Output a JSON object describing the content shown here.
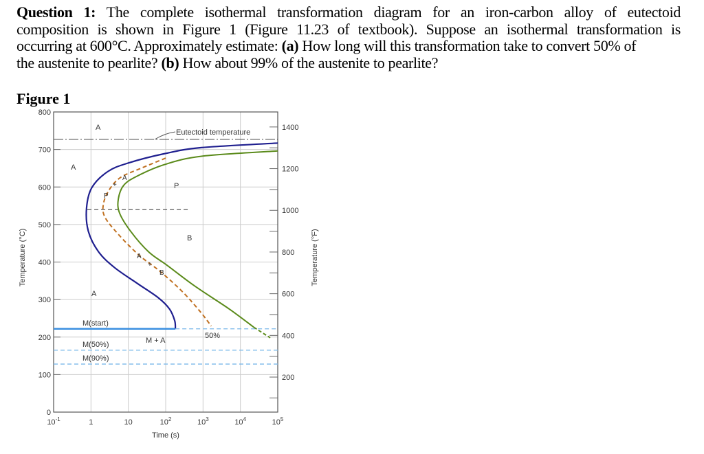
{
  "question": {
    "label": "Question 1:",
    "line1": "The complete isothermal transformation diagram for an iron-carbon alloy of eutectoid",
    "line2": "composition is shown in Figure 1 (Figure 11.23 of textbook). Suppose an isothermal transformation is",
    "line3a": "occurring at 600°C. Approximately estimate: ",
    "part_a": "(a)",
    "line3b": " How long will this transformation take to convert 50% of",
    "line4a": "the austenite to pearlite? ",
    "part_b": "(b)",
    "line4b": " How about 99% of the austenite to pearlite?"
  },
  "figure_label": "Figure 1",
  "chart_data": {
    "type": "line",
    "xlabel": "Time (s)",
    "ylabel": "Temperature (°C)",
    "ylabel_right": "Temperature (°F)",
    "xscale": "log",
    "xlim": [
      0.1,
      100000
    ],
    "ylim": [
      0,
      800
    ],
    "grid": true,
    "x_ticks": [
      "10^-1",
      "1",
      "10",
      "10^2",
      "10^3",
      "10^4",
      "10^5"
    ],
    "y_ticks": [
      "0",
      "100",
      "200",
      "300",
      "400",
      "500",
      "600",
      "700",
      "800"
    ],
    "y_right_ticks": [
      "200",
      "400",
      "600",
      "800",
      "1000",
      "1200",
      "1400"
    ],
    "colors": {
      "start": "#1f1f8f",
      "finish": "#5a8a1a",
      "fifty": "#c07020",
      "ms": "#3a8fe0",
      "mdash": "#7ab8ea"
    },
    "series": [
      {
        "key": "start",
        "points": [
          [
            100000,
            717
          ],
          [
            912,
            705
          ],
          [
            95,
            689
          ],
          [
            10,
            664
          ],
          [
            2.8,
            641
          ],
          [
            1.05,
            598
          ],
          [
            0.76,
            543
          ],
          [
            0.85,
            482
          ],
          [
            1.6,
            427
          ],
          [
            4.3,
            385
          ],
          [
            18,
            342
          ],
          [
            63,
            305
          ],
          [
            126,
            275
          ],
          [
            174,
            244
          ],
          [
            182,
            223
          ]
        ]
      },
      {
        "key": "finish",
        "points": [
          [
            100000,
            696
          ],
          [
            912,
            682
          ],
          [
            95,
            660
          ],
          [
            18,
            630
          ],
          [
            7.6,
            605
          ],
          [
            5.4,
            568
          ],
          [
            5.8,
            531
          ],
          [
            11.5,
            482
          ],
          [
            35,
            427
          ],
          [
            110,
            391
          ],
          [
            600,
            336
          ],
          [
            5000,
            275
          ],
          [
            23000,
            226
          ]
        ]
      },
      {
        "key": "finish_dashed",
        "points": [
          [
            23000,
            226
          ],
          [
            63000,
            198
          ]
        ]
      },
      {
        "key": "fifty",
        "points": [
          [
            100,
            677
          ],
          [
            22,
            650
          ],
          [
            6.3,
            626
          ],
          [
            3.2,
            595
          ],
          [
            2.2,
            559
          ],
          [
            2.3,
            522
          ],
          [
            5.5,
            473
          ],
          [
            19.5,
            418
          ],
          [
            69,
            376
          ],
          [
            280,
            321
          ],
          [
            870,
            266
          ],
          [
            1660,
            229
          ]
        ]
      }
    ],
    "lines": {
      "eutectoid": 727,
      "nose_dashed": {
        "T": 540,
        "from": 0.8,
        "to": 400
      },
      "m_start": {
        "T": 222,
        "solid_to": 182
      },
      "m_50": 165,
      "m_90": 128
    },
    "annotations": {
      "eutectoid": "Eutectoid temperature",
      "a_top": "A",
      "a_left": "A",
      "p_region": "P",
      "b_region": "B",
      "a_low": "A",
      "m_start": "M(start)",
      "m_a": "M + A",
      "m_50": "M(50%)",
      "m_90": "M(90%)",
      "fifty": "50%",
      "ap_a": "A",
      "ap_plus": "+",
      "ap_p": "P",
      "ab_a": "A",
      "ab_plus": "+",
      "ab_b": "B"
    }
  }
}
